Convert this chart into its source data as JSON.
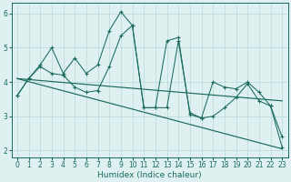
{
  "xlabel": "Humidex (Indice chaleur)",
  "x_data": [
    0,
    1,
    2,
    3,
    4,
    5,
    6,
    7,
    8,
    9,
    10,
    11,
    12,
    13,
    14,
    15,
    16,
    17,
    18,
    19,
    20,
    21,
    22,
    23
  ],
  "y_line1": [
    3.6,
    4.1,
    4.5,
    5.0,
    4.25,
    4.7,
    4.25,
    4.5,
    5.5,
    6.05,
    5.65,
    3.25,
    3.25,
    5.2,
    5.3,
    3.05,
    2.95,
    4.0,
    3.85,
    3.8,
    4.0,
    3.7,
    3.3,
    2.1
  ],
  "y_line2": [
    3.6,
    4.1,
    4.45,
    4.25,
    4.2,
    3.85,
    3.7,
    3.75,
    4.45,
    5.35,
    5.65,
    3.25,
    3.25,
    3.25,
    5.2,
    3.1,
    2.95,
    3.0,
    3.25,
    3.55,
    3.95,
    3.45,
    3.3,
    2.4
  ],
  "trend1_x": [
    0,
    23
  ],
  "trend1_y": [
    4.1,
    3.45
  ],
  "trend2_x": [
    0,
    23
  ],
  "trend2_y": [
    4.1,
    2.05
  ],
  "color": "#1a6b5e",
  "bg_color": "#dff0f0",
  "grid_color": "#b8dada",
  "xlim": [
    -0.5,
    23.5
  ],
  "ylim": [
    1.8,
    6.3
  ],
  "yticks": [
    2,
    3,
    4,
    5,
    6
  ],
  "xticks": [
    0,
    1,
    2,
    3,
    4,
    5,
    6,
    7,
    8,
    9,
    10,
    11,
    12,
    13,
    14,
    15,
    16,
    17,
    18,
    19,
    20,
    21,
    22,
    23
  ],
  "xlabel_fontsize": 6.5,
  "tick_fontsize": 5.5,
  "linewidth": 0.75,
  "markersize": 2.5
}
